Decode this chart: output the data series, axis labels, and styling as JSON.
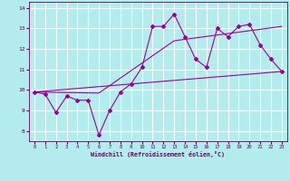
{
  "xlabel": "Windchill (Refroidissement éolien,°C)",
  "bg_color": "#b3ecec",
  "grid_color": "#ffffff",
  "line_color": "#990099",
  "xlim": [
    -0.5,
    23.5
  ],
  "ylim": [
    7.5,
    14.3
  ],
  "xticks": [
    0,
    1,
    2,
    3,
    4,
    5,
    6,
    7,
    8,
    9,
    10,
    11,
    12,
    13,
    14,
    15,
    16,
    17,
    18,
    19,
    20,
    21,
    22,
    23
  ],
  "yticks": [
    8,
    9,
    10,
    11,
    12,
    13,
    14
  ],
  "series1_x": [
    0,
    1,
    2,
    3,
    4,
    5,
    6,
    7,
    8,
    9,
    10,
    11,
    12,
    13,
    14,
    15,
    16,
    17,
    18,
    19,
    20,
    21,
    22,
    23
  ],
  "series1_y": [
    9.9,
    9.8,
    8.9,
    9.7,
    9.5,
    9.5,
    7.8,
    9.0,
    9.9,
    10.3,
    11.1,
    13.1,
    13.1,
    13.7,
    12.6,
    11.5,
    11.1,
    13.0,
    12.6,
    13.1,
    13.2,
    12.2,
    11.5,
    10.9
  ],
  "series2_x": [
    0,
    23
  ],
  "series2_y": [
    9.9,
    10.9
  ],
  "series3_x": [
    0,
    6,
    13,
    23
  ],
  "series3_y": [
    9.9,
    9.85,
    12.4,
    13.1
  ]
}
